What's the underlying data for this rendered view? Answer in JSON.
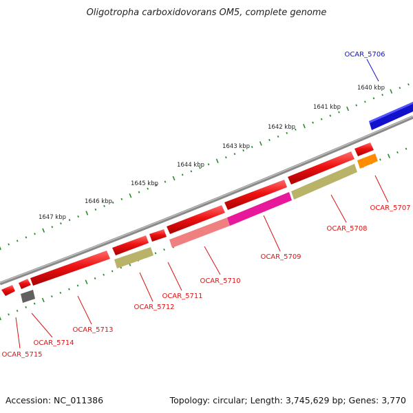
{
  "title": "Oligotropha carboxidovorans OM5, complete genome",
  "footer": {
    "accession": "Accession: NC_011386",
    "summary": "Topology: circular; Length: 3,745,629 bp; Genes: 3,770"
  },
  "colors": {
    "background": "#ffffff",
    "backbone": "#8a8a8a",
    "tick": "#2a8a2a",
    "label_red": "#dd1111",
    "label_blue": "#1111cc"
  },
  "scale_labels": [
    "1640 kbp",
    "1641 kbp",
    "1642 kbp",
    "1643 kbp",
    "1644 kbp",
    "1645 kbp",
    "1646 kbp",
    "1647 kbp"
  ],
  "genes": [
    {
      "name": "OCAR_5706",
      "color": "#1111cc",
      "strand": "forward",
      "label_color": "#1111cc"
    },
    {
      "name": "OCAR_5707",
      "color": "#ff8c00",
      "strand": "reverse",
      "label_color": "#dd1111"
    },
    {
      "name": "OCAR_5708",
      "color": "#b9b36a",
      "strand": "reverse",
      "label_color": "#dd1111"
    },
    {
      "name": "OCAR_5709",
      "color": "#e8189a",
      "strand": "reverse",
      "label_color": "#dd1111"
    },
    {
      "name": "OCAR_5710",
      "color": "#f08080",
      "strand": "reverse",
      "label_color": "#dd1111"
    },
    {
      "name": "OCAR_5711",
      "color": "#ee1111",
      "strand": "reverse",
      "label_color": "#dd1111"
    },
    {
      "name": "OCAR_5712",
      "color": "#b9b36a",
      "strand": "reverse",
      "label_color": "#dd1111"
    },
    {
      "name": "OCAR_5713",
      "color": "#ee1111",
      "strand": "reverse",
      "label_color": "#dd1111"
    },
    {
      "name": "OCAR_5714",
      "color": "#606060",
      "strand": "reverse",
      "label_color": "#dd1111"
    },
    {
      "name": "OCAR_5715",
      "color": "#ee1111",
      "strand": "reverse",
      "label_color": "#dd1111"
    }
  ]
}
